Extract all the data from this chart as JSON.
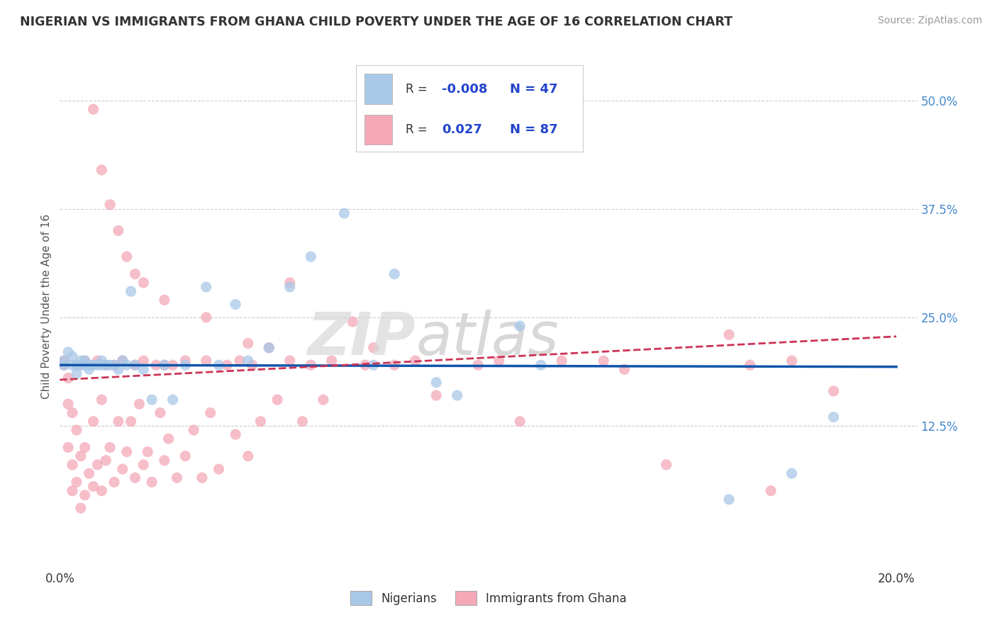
{
  "title": "NIGERIAN VS IMMIGRANTS FROM GHANA CHILD POVERTY UNDER THE AGE OF 16 CORRELATION CHART",
  "source": "Source: ZipAtlas.com",
  "ylabel": "Child Poverty Under the Age of 16",
  "xlim": [
    0.0,
    0.205
  ],
  "ylim": [
    -0.04,
    0.565
  ],
  "ytick_positions": [
    0.125,
    0.25,
    0.375,
    0.5
  ],
  "ytick_labels": [
    "12.5%",
    "25.0%",
    "37.5%",
    "50.0%"
  ],
  "color_blue": "#a8c8e8",
  "color_pink": "#f4a8b8",
  "line_color_blue": "#1155aa",
  "line_color_pink": "#cc3355",
  "nig_trend_x0": 0.0,
  "nig_trend_y0": 0.195,
  "nig_trend_x1": 0.2,
  "nig_trend_y1": 0.193,
  "gha_trend_x0": 0.0,
  "gha_trend_y0": 0.178,
  "gha_trend_x1": 0.2,
  "gha_trend_y1": 0.228,
  "nig_x": [
    0.001,
    0.001,
    0.002,
    0.003,
    0.003,
    0.004,
    0.004,
    0.005,
    0.005,
    0.006,
    0.006,
    0.007,
    0.007,
    0.008,
    0.009,
    0.01,
    0.01,
    0.011,
    0.012,
    0.013,
    0.014,
    0.015,
    0.016,
    0.017,
    0.018,
    0.02,
    0.022,
    0.025,
    0.027,
    0.03,
    0.035,
    0.038,
    0.042,
    0.045,
    0.05,
    0.055,
    0.06,
    0.068,
    0.075,
    0.08,
    0.09,
    0.095,
    0.11,
    0.16,
    0.175,
    0.185,
    0.115
  ],
  "nig_y": [
    0.195,
    0.2,
    0.21,
    0.195,
    0.205,
    0.185,
    0.195,
    0.195,
    0.2,
    0.195,
    0.2,
    0.19,
    0.195,
    0.195,
    0.195,
    0.195,
    0.2,
    0.195,
    0.195,
    0.195,
    0.19,
    0.2,
    0.195,
    0.28,
    0.195,
    0.19,
    0.155,
    0.195,
    0.155,
    0.195,
    0.285,
    0.195,
    0.265,
    0.2,
    0.215,
    0.285,
    0.32,
    0.37,
    0.195,
    0.3,
    0.175,
    0.16,
    0.24,
    0.04,
    0.07,
    0.135,
    0.195
  ],
  "gha_x": [
    0.001,
    0.001,
    0.002,
    0.002,
    0.002,
    0.003,
    0.003,
    0.003,
    0.004,
    0.004,
    0.004,
    0.005,
    0.005,
    0.005,
    0.006,
    0.006,
    0.006,
    0.007,
    0.007,
    0.008,
    0.008,
    0.009,
    0.009,
    0.01,
    0.01,
    0.011,
    0.011,
    0.012,
    0.013,
    0.013,
    0.014,
    0.015,
    0.015,
    0.016,
    0.017,
    0.018,
    0.018,
    0.019,
    0.02,
    0.02,
    0.021,
    0.022,
    0.023,
    0.024,
    0.025,
    0.025,
    0.026,
    0.027,
    0.028,
    0.03,
    0.03,
    0.032,
    0.034,
    0.035,
    0.036,
    0.038,
    0.04,
    0.042,
    0.043,
    0.045,
    0.046,
    0.048,
    0.05,
    0.052,
    0.055,
    0.058,
    0.06,
    0.063,
    0.065,
    0.07,
    0.073,
    0.075,
    0.08,
    0.085,
    0.09,
    0.1,
    0.105,
    0.11,
    0.12,
    0.13,
    0.135,
    0.145,
    0.16,
    0.165,
    0.17,
    0.175,
    0.185
  ],
  "gha_y": [
    0.195,
    0.2,
    0.1,
    0.15,
    0.18,
    0.05,
    0.08,
    0.14,
    0.06,
    0.12,
    0.195,
    0.03,
    0.09,
    0.195,
    0.045,
    0.1,
    0.2,
    0.07,
    0.195,
    0.055,
    0.13,
    0.08,
    0.2,
    0.05,
    0.155,
    0.085,
    0.195,
    0.1,
    0.06,
    0.195,
    0.13,
    0.075,
    0.2,
    0.095,
    0.13,
    0.065,
    0.195,
    0.15,
    0.08,
    0.2,
    0.095,
    0.06,
    0.195,
    0.14,
    0.085,
    0.195,
    0.11,
    0.195,
    0.065,
    0.09,
    0.2,
    0.12,
    0.065,
    0.2,
    0.14,
    0.075,
    0.195,
    0.115,
    0.2,
    0.09,
    0.195,
    0.13,
    0.215,
    0.155,
    0.2,
    0.13,
    0.195,
    0.155,
    0.2,
    0.245,
    0.195,
    0.215,
    0.195,
    0.2,
    0.16,
    0.195,
    0.2,
    0.13,
    0.2,
    0.2,
    0.19,
    0.08,
    0.23,
    0.195,
    0.05,
    0.2,
    0.165
  ],
  "gha_outliers_x": [
    0.008,
    0.01,
    0.012,
    0.014,
    0.016,
    0.018,
    0.02,
    0.025,
    0.035,
    0.045,
    0.055
  ],
  "gha_outliers_y": [
    0.49,
    0.42,
    0.38,
    0.35,
    0.32,
    0.3,
    0.29,
    0.27,
    0.25,
    0.22,
    0.29
  ]
}
